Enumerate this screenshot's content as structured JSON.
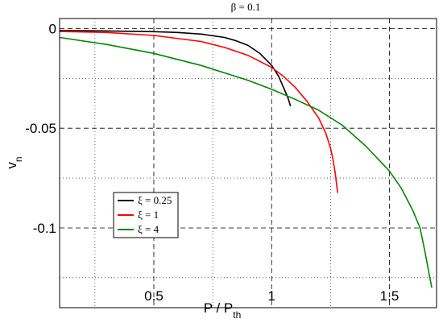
{
  "chart_data": {
    "type": "line",
    "title": "β = 0.1",
    "xlabel": {
      "main": "P / P",
      "sub": "th"
    },
    "ylabel": {
      "main": "v",
      "sub": "n"
    },
    "xlim": [
      0.1,
      1.7
    ],
    "ylim": [
      -0.14,
      0.005
    ],
    "x_ticks": [
      {
        "value": 0.5,
        "label": "0.5"
      },
      {
        "value": 1.0,
        "label": "1"
      },
      {
        "value": 1.5,
        "label": "1.5"
      }
    ],
    "y_ticks": [
      {
        "value": 0,
        "label": "0"
      },
      {
        "value": -0.05,
        "label": "-0.05"
      },
      {
        "value": -0.1,
        "label": "-0.1"
      }
    ],
    "grid": {
      "x_dashed": [
        0.5,
        1.0,
        1.5
      ],
      "x_dotted": [
        0.25,
        0.75,
        1.25
      ],
      "y_dashed": [
        0,
        -0.05,
        -0.1
      ],
      "y_dotted": [
        -0.025,
        -0.075,
        -0.125
      ]
    },
    "legend_position": "lower-left",
    "series": [
      {
        "name": "ξ = 0.25",
        "color": "#000000",
        "x": [
          0.1,
          0.3,
          0.5,
          0.6,
          0.7,
          0.8,
          0.85,
          0.9,
          0.95,
          1.0,
          1.03,
          1.05,
          1.07,
          1.08
        ],
        "y": [
          -0.001,
          -0.0012,
          -0.0016,
          -0.002,
          -0.0028,
          -0.0045,
          -0.0062,
          -0.0085,
          -0.0125,
          -0.0185,
          -0.024,
          -0.0295,
          -0.035,
          -0.039
        ]
      },
      {
        "name": "ξ = 1",
        "color": "#ff0000",
        "x": [
          0.1,
          0.3,
          0.5,
          0.7,
          0.8,
          0.9,
          1.0,
          1.05,
          1.1,
          1.15,
          1.2,
          1.23,
          1.25,
          1.26,
          1.27,
          1.28
        ],
        "y": [
          -0.0015,
          -0.002,
          -0.0035,
          -0.0065,
          -0.0095,
          -0.0135,
          -0.0195,
          -0.024,
          -0.0295,
          -0.0365,
          -0.045,
          -0.0525,
          -0.06,
          -0.0655,
          -0.0725,
          -0.0825
        ]
      },
      {
        "name": "ξ = 4",
        "color": "#008800",
        "x": [
          0.1,
          0.3,
          0.5,
          0.7,
          0.9,
          1.0,
          1.1,
          1.2,
          1.3,
          1.4,
          1.5,
          1.55,
          1.6,
          1.63,
          1.65,
          1.67,
          1.68
        ],
        "y": [
          -0.0045,
          -0.008,
          -0.0125,
          -0.0185,
          -0.026,
          -0.0305,
          -0.0355,
          -0.041,
          -0.0485,
          -0.059,
          -0.0715,
          -0.08,
          -0.0915,
          -0.1,
          -0.1115,
          -0.124,
          -0.13
        ]
      }
    ]
  }
}
